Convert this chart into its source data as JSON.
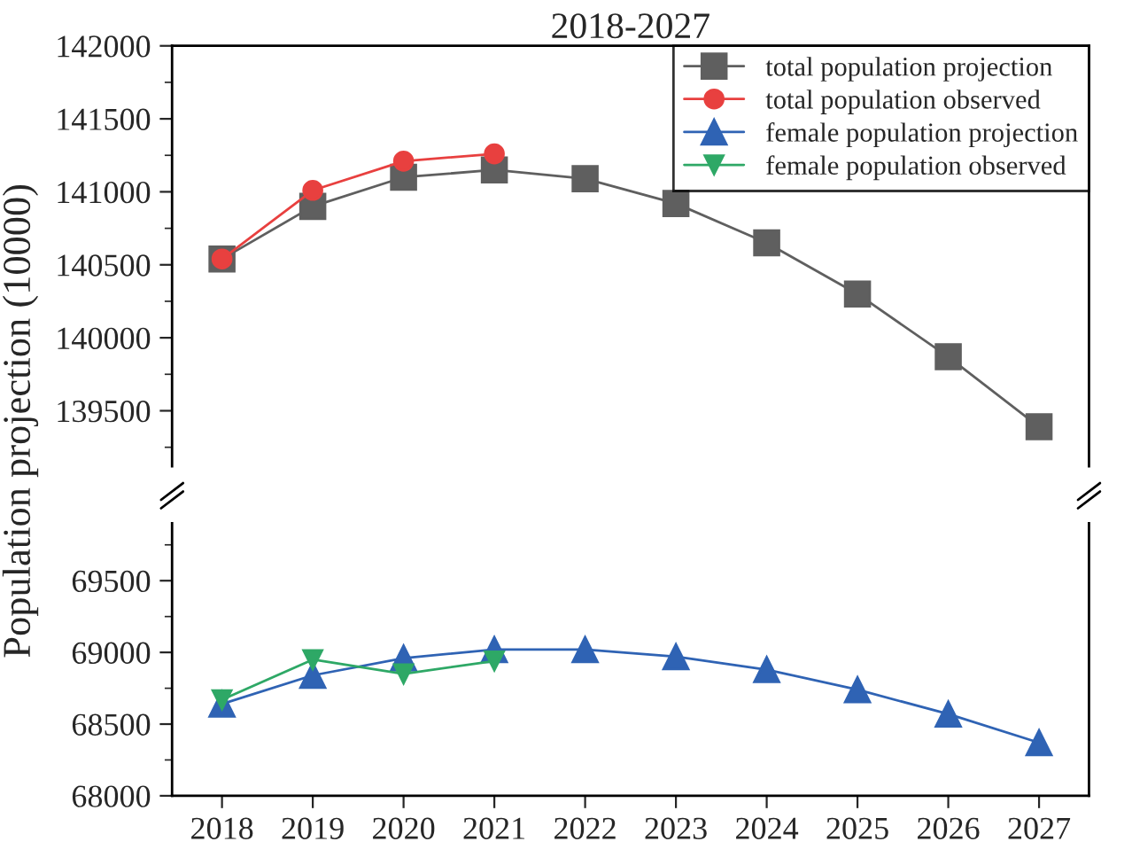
{
  "chart_data": [
    {
      "type": "line",
      "title": "2018-2027",
      "ylabel": "Population projection (10000)",
      "categories": [
        "2018",
        "2019",
        "2020",
        "2021",
        "2022",
        "2023",
        "2024",
        "2025",
        "2026",
        "2027"
      ],
      "series": [
        {
          "name": "total population projection",
          "color": "#5f5f5f",
          "marker": "square",
          "values": [
            140540,
            140900,
            141100,
            141150,
            141090,
            140920,
            140650,
            140300,
            139870,
            139390
          ]
        },
        {
          "name": "total population observed",
          "color": "#e8403f",
          "marker": "circle",
          "values": [
            140540,
            141010,
            141210,
            141260,
            null,
            null,
            null,
            null,
            null,
            null
          ]
        }
      ],
      "ylim": [
        139120,
        142000
      ],
      "yticks": [
        139500,
        140000,
        140500,
        141000,
        141500,
        142000,
        {
          "value": 139250,
          "label": null
        },
        {
          "value": 139750,
          "label": null
        },
        {
          "value": 140250,
          "label": null
        },
        {
          "value": 140750,
          "label": null
        },
        {
          "value": 141250,
          "label": null
        },
        {
          "value": 141750,
          "label": null
        }
      ],
      "tick_labels": "y",
      "legend": "top right",
      "grid": false,
      "line_style": "solid"
    },
    {
      "type": "line",
      "categories": [
        "2018",
        "2019",
        "2020",
        "2021",
        "2022",
        "2023",
        "2024",
        "2025",
        "2026",
        "2027"
      ],
      "series": [
        {
          "name": "female population projection",
          "color": "#2f63b4",
          "marker": "triangle",
          "values": [
            68640,
            68840,
            68960,
            69020,
            69020,
            68970,
            68880,
            68740,
            68570,
            68370
          ]
        },
        {
          "name": "female population observed",
          "color": "#2ea866",
          "marker": "triangle_down",
          "values": [
            68670,
            68950,
            68850,
            68940,
            null,
            null,
            null,
            null,
            null,
            null
          ]
        }
      ],
      "ylim": [
        68000,
        69900
      ],
      "yticks": [
        68000,
        68500,
        69000,
        69500,
        {
          "value": 68250,
          "label": null
        },
        {
          "value": 68750,
          "label": null
        },
        {
          "value": 69250,
          "label": null
        },
        {
          "value": 69750,
          "label": null
        }
      ],
      "legend": "top right",
      "grid": false,
      "line_style": "solid"
    }
  ]
}
